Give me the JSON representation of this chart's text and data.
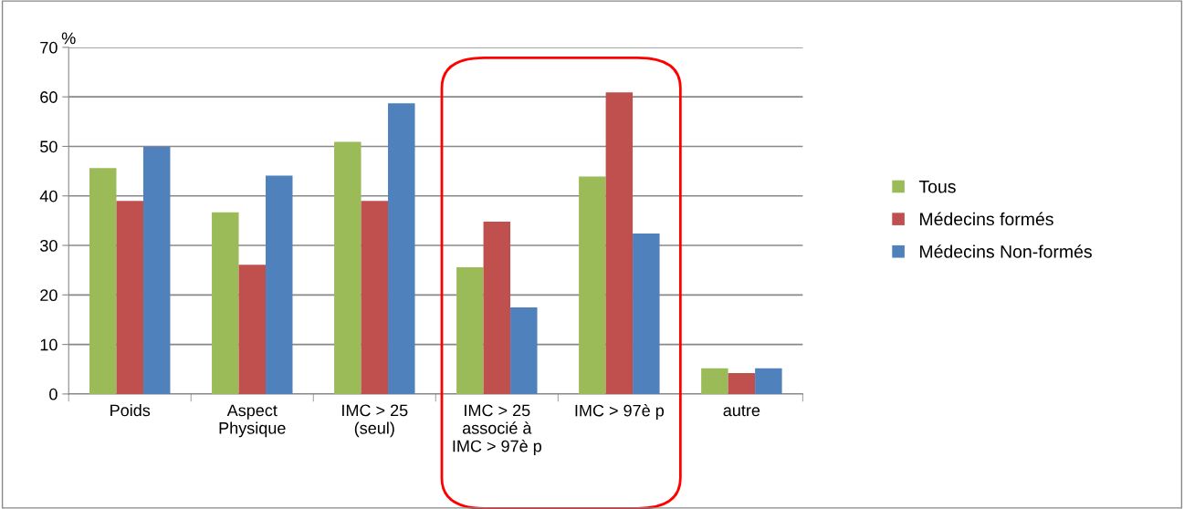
{
  "chart_data": {
    "type": "bar",
    "ylabel": "%",
    "categories": [
      "Poids",
      "Aspect\nPhysique",
      "IMC > 25\n(seul)",
      "IMC > 25\nassocié à\nIMC > 97è p",
      "IMC > 97è p",
      "autre"
    ],
    "series": [
      {
        "name": "Tous",
        "color": "#9bbb59",
        "values": [
          45.6,
          36.7,
          50.9,
          25.6,
          43.9,
          5.2
        ]
      },
      {
        "name": "Médecins formés",
        "color": "#c0504d",
        "values": [
          39.0,
          26.1,
          39.0,
          34.8,
          60.9,
          4.2
        ]
      },
      {
        "name": "Médecins Non-formés",
        "color": "#4f81bd",
        "values": [
          49.9,
          44.1,
          58.7,
          17.5,
          32.4,
          5.2
        ]
      }
    ],
    "ylim": [
      0,
      70
    ],
    "yticks": [
      0,
      10,
      20,
      30,
      40,
      50,
      60,
      70
    ],
    "grid": "y",
    "legend": "right"
  }
}
